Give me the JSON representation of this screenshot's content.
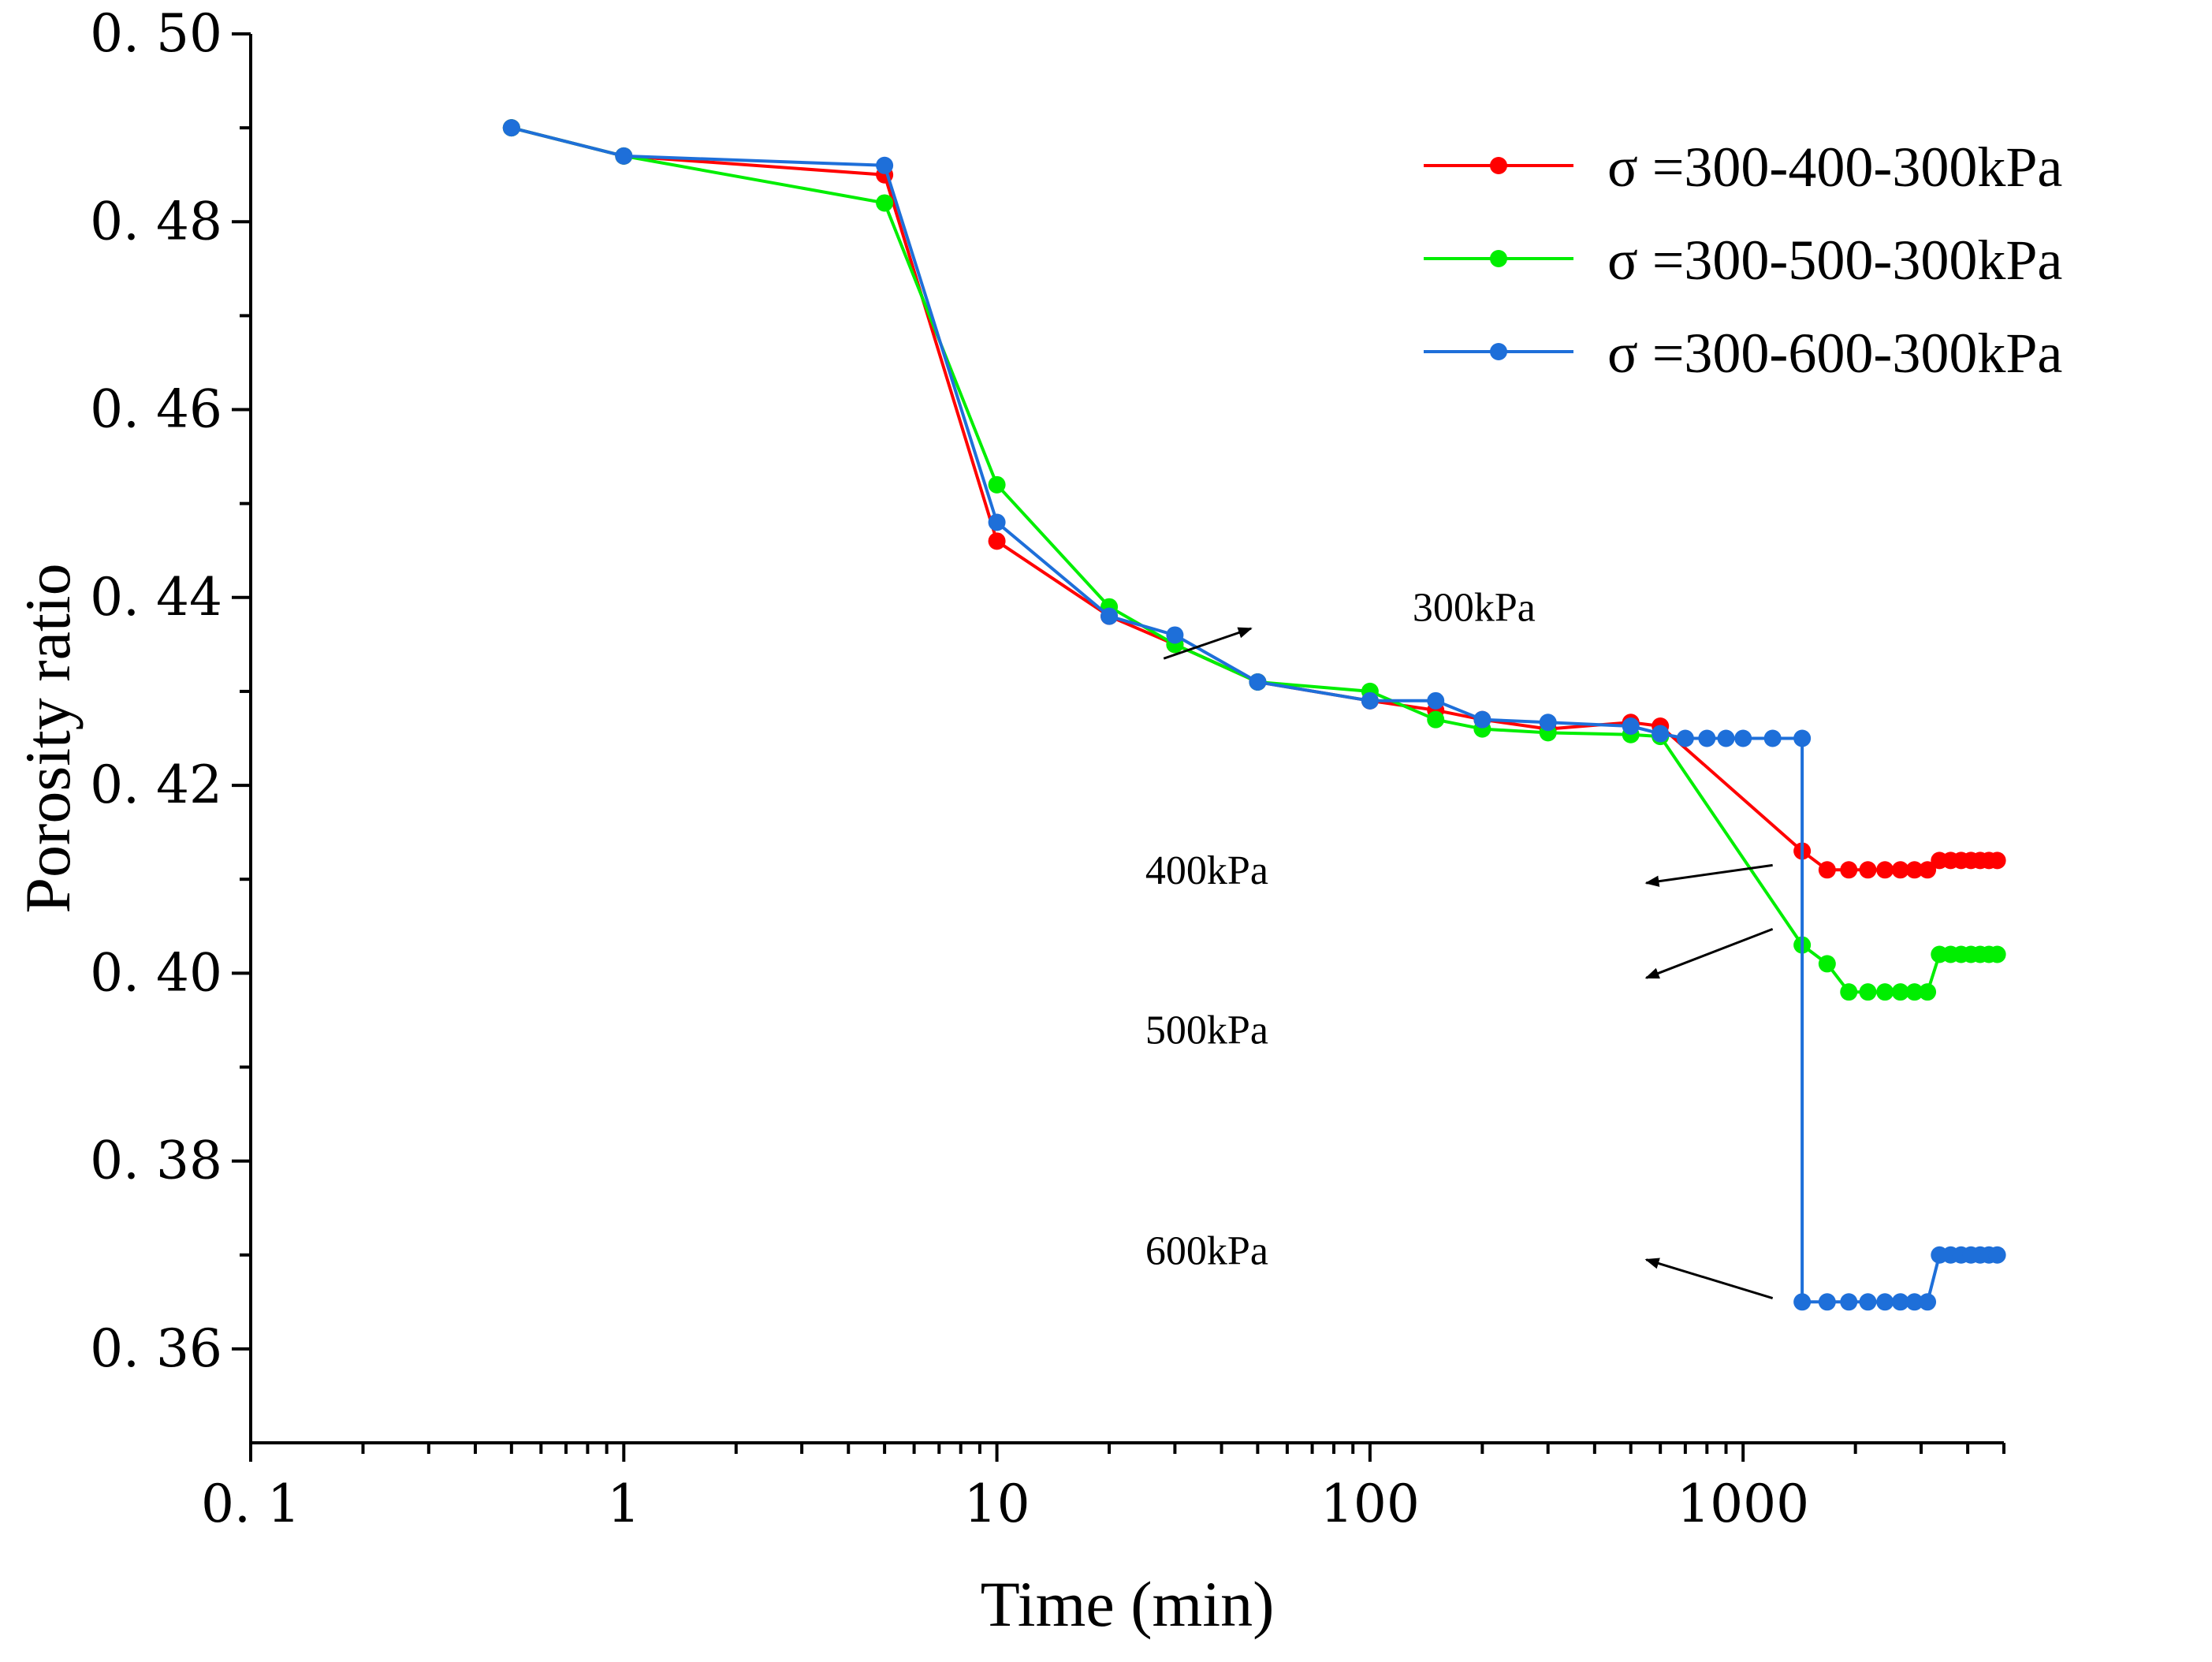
{
  "chart_data": {
    "type": "line",
    "title": "",
    "xlabel": "Time (min)",
    "ylabel": "Porosity ratio",
    "xscale": "log",
    "xlim": [
      0.1,
      5000
    ],
    "ylim": [
      0.35,
      0.5
    ],
    "x_ticks": [
      0.1,
      1,
      10,
      100,
      1000
    ],
    "x_tick_labels": [
      "0. 1",
      "1",
      "10",
      "100",
      "1000"
    ],
    "y_ticks": [
      0.36,
      0.38,
      0.4,
      0.42,
      0.44,
      0.46,
      0.48,
      0.5
    ],
    "y_tick_labels": [
      "0. 36",
      "0. 38",
      "0. 40",
      "0. 42",
      "0. 44",
      "0. 46",
      "0. 48",
      "0. 50"
    ],
    "grid": false,
    "legend_position": "top-right",
    "series": [
      {
        "name": "σ =300-400-300kPa",
        "color": "#ff0000",
        "x": [
          0.5,
          1,
          5,
          10,
          20,
          30,
          50,
          100,
          150,
          200,
          300,
          500,
          600,
          1440,
          1680,
          1920,
          2160,
          2400,
          2640,
          2880,
          3120,
          3360,
          3600,
          3840,
          4080,
          4320,
          4560,
          4800
        ],
        "y": [
          0.49,
          0.487,
          0.485,
          0.446,
          0.438,
          0.435,
          0.431,
          0.429,
          0.428,
          0.427,
          0.426,
          0.4267,
          0.4263,
          0.413,
          0.411,
          0.411,
          0.411,
          0.411,
          0.411,
          0.411,
          0.411,
          0.412,
          0.412,
          0.412,
          0.412,
          0.412,
          0.412,
          0.412
        ]
      },
      {
        "name": "σ =300-500-300kPa",
        "color": "#00ee00",
        "x": [
          0.5,
          1,
          5,
          10,
          20,
          30,
          50,
          100,
          150,
          200,
          300,
          500,
          600,
          1440,
          1680,
          1920,
          2160,
          2400,
          2640,
          2880,
          3120,
          3360,
          3600,
          3840,
          4080,
          4320,
          4560,
          4800
        ],
        "y": [
          0.49,
          0.487,
          0.482,
          0.452,
          0.439,
          0.435,
          0.431,
          0.43,
          0.427,
          0.426,
          0.4256,
          0.4254,
          0.4252,
          0.403,
          0.401,
          0.398,
          0.398,
          0.398,
          0.398,
          0.398,
          0.398,
          0.402,
          0.402,
          0.402,
          0.402,
          0.402,
          0.402,
          0.402
        ]
      },
      {
        "name": "σ =300-600-300kPa",
        "color": "#1e6fd9",
        "x": [
          0.5,
          1,
          5,
          10,
          20,
          30,
          50,
          100,
          150,
          200,
          300,
          500,
          600,
          700,
          800,
          900,
          1000,
          1200,
          1440,
          1440,
          1680,
          1920,
          2160,
          2400,
          2640,
          2880,
          3120,
          3360,
          3600,
          3840,
          4080,
          4320,
          4560,
          4800
        ],
        "y": [
          0.49,
          0.487,
          0.486,
          0.448,
          0.438,
          0.436,
          0.431,
          0.429,
          0.429,
          0.427,
          0.4267,
          0.4263,
          0.4255,
          0.425,
          0.425,
          0.425,
          0.425,
          0.425,
          0.425,
          0.365,
          0.365,
          0.365,
          0.365,
          0.365,
          0.365,
          0.365,
          0.365,
          0.37,
          0.37,
          0.37,
          0.37,
          0.37,
          0.37,
          0.37
        ]
      }
    ],
    "annotations": [
      {
        "text": "300kPa",
        "x": 130,
        "y": 0.4375,
        "arrow_from": [
          28,
          0.4335
        ],
        "arrow_to": [
          48,
          0.4367
        ]
      },
      {
        "text": "400kPa",
        "x": 25,
        "y": 0.4095,
        "arrow_from": [
          1200,
          0.4115
        ],
        "arrow_to": [
          550,
          0.4096
        ]
      },
      {
        "text": "500kPa",
        "x": 25,
        "y": 0.3925,
        "arrow_from": [
          1200,
          0.4047
        ],
        "arrow_to": [
          550,
          0.3995
        ]
      },
      {
        "text": "600kPa",
        "x": 25,
        "y": 0.369,
        "arrow_from": [
          1200,
          0.3654
        ],
        "arrow_to": [
          550,
          0.3695
        ]
      }
    ]
  }
}
